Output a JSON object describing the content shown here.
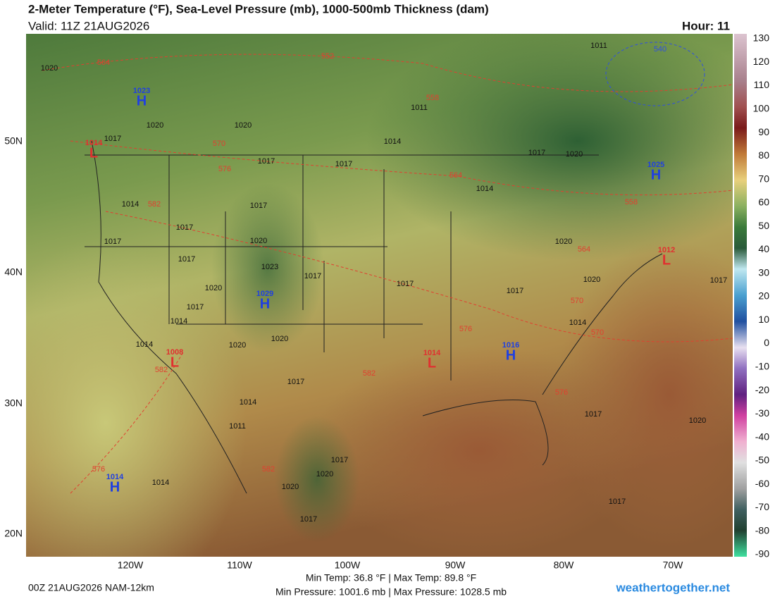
{
  "header": {
    "title": "2-Meter Temperature (°F), Sea-Level Pressure (mb), 1000-500mb Thickness (dam)",
    "valid": "Valid: 11Z 21AUG2026",
    "hour": "Hour: 11"
  },
  "map": {
    "lat_labels": [
      "50N",
      "40N",
      "30N",
      "20N"
    ],
    "lon_labels": [
      "120W",
      "110W",
      "100W",
      "90W",
      "80W",
      "70W"
    ],
    "isobar_labels": [
      1020,
      1011,
      1020,
      1020,
      1011,
      1014,
      1017,
      1017,
      1017,
      1017,
      1020,
      1014,
      1014,
      1017,
      1017,
      1020,
      1017,
      1017,
      1023,
      1020,
      1017,
      1017,
      1017,
      1020,
      1017,
      1017,
      1014,
      1014,
      1020,
      1020,
      1017,
      1014,
      1011,
      1017,
      1020,
      1017,
      1020,
      1020,
      1017,
      1014,
      1017,
      1020,
      1014
    ],
    "thickness_labels": [
      564,
      552,
      558,
      570,
      576,
      582,
      564,
      558,
      564,
      570,
      576,
      582,
      576,
      582,
      576,
      582,
      540,
      570
    ],
    "highs": [
      {
        "value": 1023,
        "letter": "H"
      },
      {
        "value": 1025,
        "letter": "H"
      },
      {
        "value": 1029,
        "letter": "H"
      },
      {
        "value": 1016,
        "letter": "H"
      },
      {
        "value": 1014,
        "letter": "H"
      }
    ],
    "lows": [
      {
        "value": 1014,
        "letter": "L"
      },
      {
        "value": 1008,
        "letter": "L"
      },
      {
        "value": 1014,
        "letter": "L"
      },
      {
        "value": 1012,
        "letter": "L"
      }
    ]
  },
  "colorbar": {
    "ticks": [
      130,
      120,
      110,
      100,
      90,
      80,
      70,
      60,
      50,
      40,
      30,
      20,
      10,
      0,
      -10,
      -20,
      -30,
      -40,
      -50,
      -60,
      -70,
      -80,
      -90
    ]
  },
  "footer": {
    "run": "00Z 21AUG2026 NAM-12km",
    "temp_stats": "Min Temp:  36.8 °F | Max Temp:  89.8 °F",
    "pressure_stats": "Min Pressure: 1001.6 mb | Max Pressure: 1028.5 mb",
    "site": "weathertogether.net"
  }
}
